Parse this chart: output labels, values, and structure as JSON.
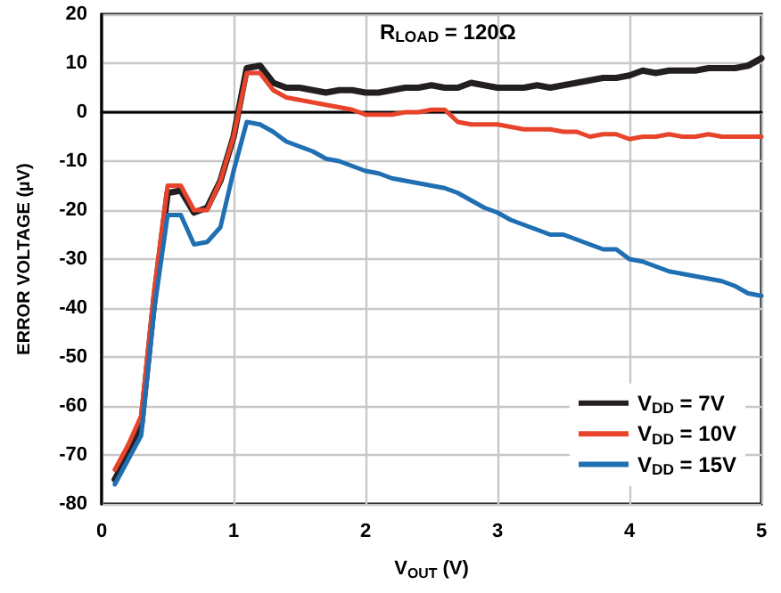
{
  "chart_data": {
    "type": "line",
    "xlabel": "V$_{OUT}$ (V)",
    "ylabel": "ERROR VOLTAGE (µV)",
    "annotations": [
      "R$_{LOAD}$ = 120Ω"
    ],
    "x": [
      0.1,
      0.2,
      0.3,
      0.4,
      0.5,
      0.6,
      0.7,
      0.8,
      0.9,
      1.0,
      1.1,
      1.2,
      1.3,
      1.4,
      1.5,
      1.6,
      1.7,
      1.8,
      1.9,
      2.0,
      2.1,
      2.2,
      2.3,
      2.4,
      2.5,
      2.6,
      2.7,
      2.8,
      2.9,
      3.0,
      3.1,
      3.2,
      3.3,
      3.4,
      3.5,
      3.6,
      3.7,
      3.8,
      3.9,
      4.0,
      4.1,
      4.2,
      4.3,
      4.4,
      4.5,
      4.6,
      4.7,
      4.8,
      4.9,
      5.0
    ],
    "series": [
      {
        "name": "V$_{DD}$ = 7V",
        "color": "#231f20",
        "values": [
          -75,
          -70,
          -64,
          -38,
          -16.5,
          -16,
          -20.5,
          -19.5,
          -14,
          -5,
          9,
          9.5,
          6,
          5,
          5,
          4.5,
          4,
          4.5,
          4.5,
          4,
          4,
          4.5,
          5,
          5,
          5.5,
          5,
          5,
          6,
          5.5,
          5,
          5,
          5,
          5.5,
          5,
          5.5,
          6,
          6.5,
          7,
          7,
          7.5,
          8.5,
          8,
          8.5,
          8.5,
          8.5,
          9,
          9,
          9,
          9.5,
          11
        ]
      },
      {
        "name": "V$_{DD}$ = 10V",
        "color": "#e8432b",
        "values": [
          -73,
          -68,
          -62,
          -36,
          -15,
          -15,
          -20,
          -20,
          -14,
          -5,
          8,
          8,
          4.5,
          3,
          2.5,
          2,
          1.5,
          1,
          0.5,
          -0.5,
          -0.5,
          -0.5,
          0,
          0,
          0.5,
          0.5,
          -2,
          -2.5,
          -2.5,
          -2.5,
          -3,
          -3.5,
          -3.5,
          -3.5,
          -4,
          -4,
          -5,
          -4.5,
          -4.5,
          -5.5,
          -5,
          -5,
          -4.5,
          -5,
          -5,
          -4.5,
          -5,
          -5,
          -5,
          -5
        ]
      },
      {
        "name": "V$_{DD}$ = 15V",
        "color": "#1f6fb2",
        "values": [
          -76,
          -71,
          -66,
          -40,
          -21,
          -21,
          -27,
          -26.5,
          -23.5,
          -12,
          -2,
          -2.5,
          -4,
          -6,
          -7,
          -8,
          -9.5,
          -10,
          -11,
          -12,
          -12.5,
          -13.5,
          -14,
          -14.5,
          -15,
          -15.5,
          -16.5,
          -18,
          -19.5,
          -20.5,
          -22,
          -23,
          -24,
          -25,
          -25,
          -26,
          -27,
          -28,
          -28,
          -30,
          -30.5,
          -31.5,
          -32.5,
          -33,
          -33.5,
          -34,
          -34.5,
          -35.5,
          -37,
          -37.5
        ]
      }
    ],
    "xlim": [
      0,
      5
    ],
    "xticks": [
      0,
      1,
      2,
      3,
      4,
      5
    ],
    "ylim": [
      -80,
      20
    ],
    "yticks": [
      -80,
      -70,
      -60,
      -50,
      -40,
      -30,
      -20,
      -10,
      0,
      10,
      20
    ],
    "grid": true,
    "legend": "bottom right",
    "marker": "none",
    "line_style": "solid"
  }
}
